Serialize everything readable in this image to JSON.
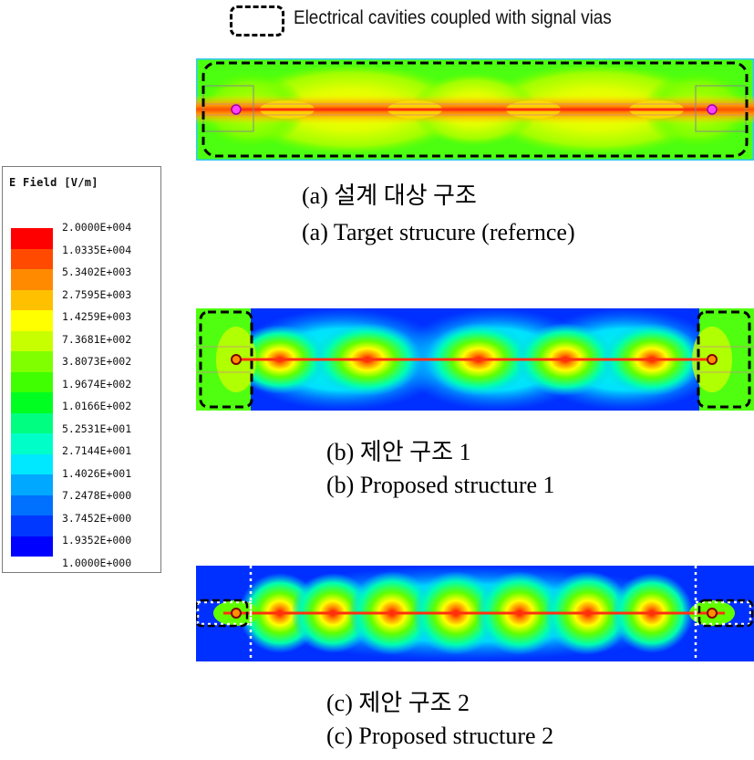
{
  "key": {
    "label": "Electrical cavities coupled with signal vias"
  },
  "legend": {
    "title": "E Field [V/m]",
    "levels": [
      {
        "value": "2.0000E+004",
        "color": "#ff0000"
      },
      {
        "value": "1.0335E+004",
        "color": "#ff4a00"
      },
      {
        "value": "5.3402E+003",
        "color": "#ff8a00"
      },
      {
        "value": "2.7595E+003",
        "color": "#ffc000"
      },
      {
        "value": "1.4259E+003",
        "color": "#ffff00"
      },
      {
        "value": "7.3681E+002",
        "color": "#c8ff00"
      },
      {
        "value": "3.8073E+002",
        "color": "#80ff00"
      },
      {
        "value": "1.9674E+002",
        "color": "#40ff00"
      },
      {
        "value": "1.0166E+002",
        "color": "#00ff20"
      },
      {
        "value": "5.2531E+001",
        "color": "#00ff80"
      },
      {
        "value": "2.7144E+001",
        "color": "#00ffc8"
      },
      {
        "value": "1.4026E+001",
        "color": "#00e8ff"
      },
      {
        "value": "7.2478E+000",
        "color": "#00a8ff"
      },
      {
        "value": "3.7452E+000",
        "color": "#0070ff"
      },
      {
        "value": "1.9352E+000",
        "color": "#0038ff"
      },
      {
        "value": "1.0000E+000",
        "color": "#0000ff"
      }
    ]
  },
  "panels": [
    {
      "caption_ko": "(a) 설계 대상 구조",
      "caption_en": "(a) Target strucure (refernce)"
    },
    {
      "caption_ko": "(b) 제안 구조 1",
      "caption_en": "(b) Proposed structure 1"
    },
    {
      "caption_ko": "(c) 제안 구조 2",
      "caption_en": "(c) Proposed structure 2"
    }
  ]
}
